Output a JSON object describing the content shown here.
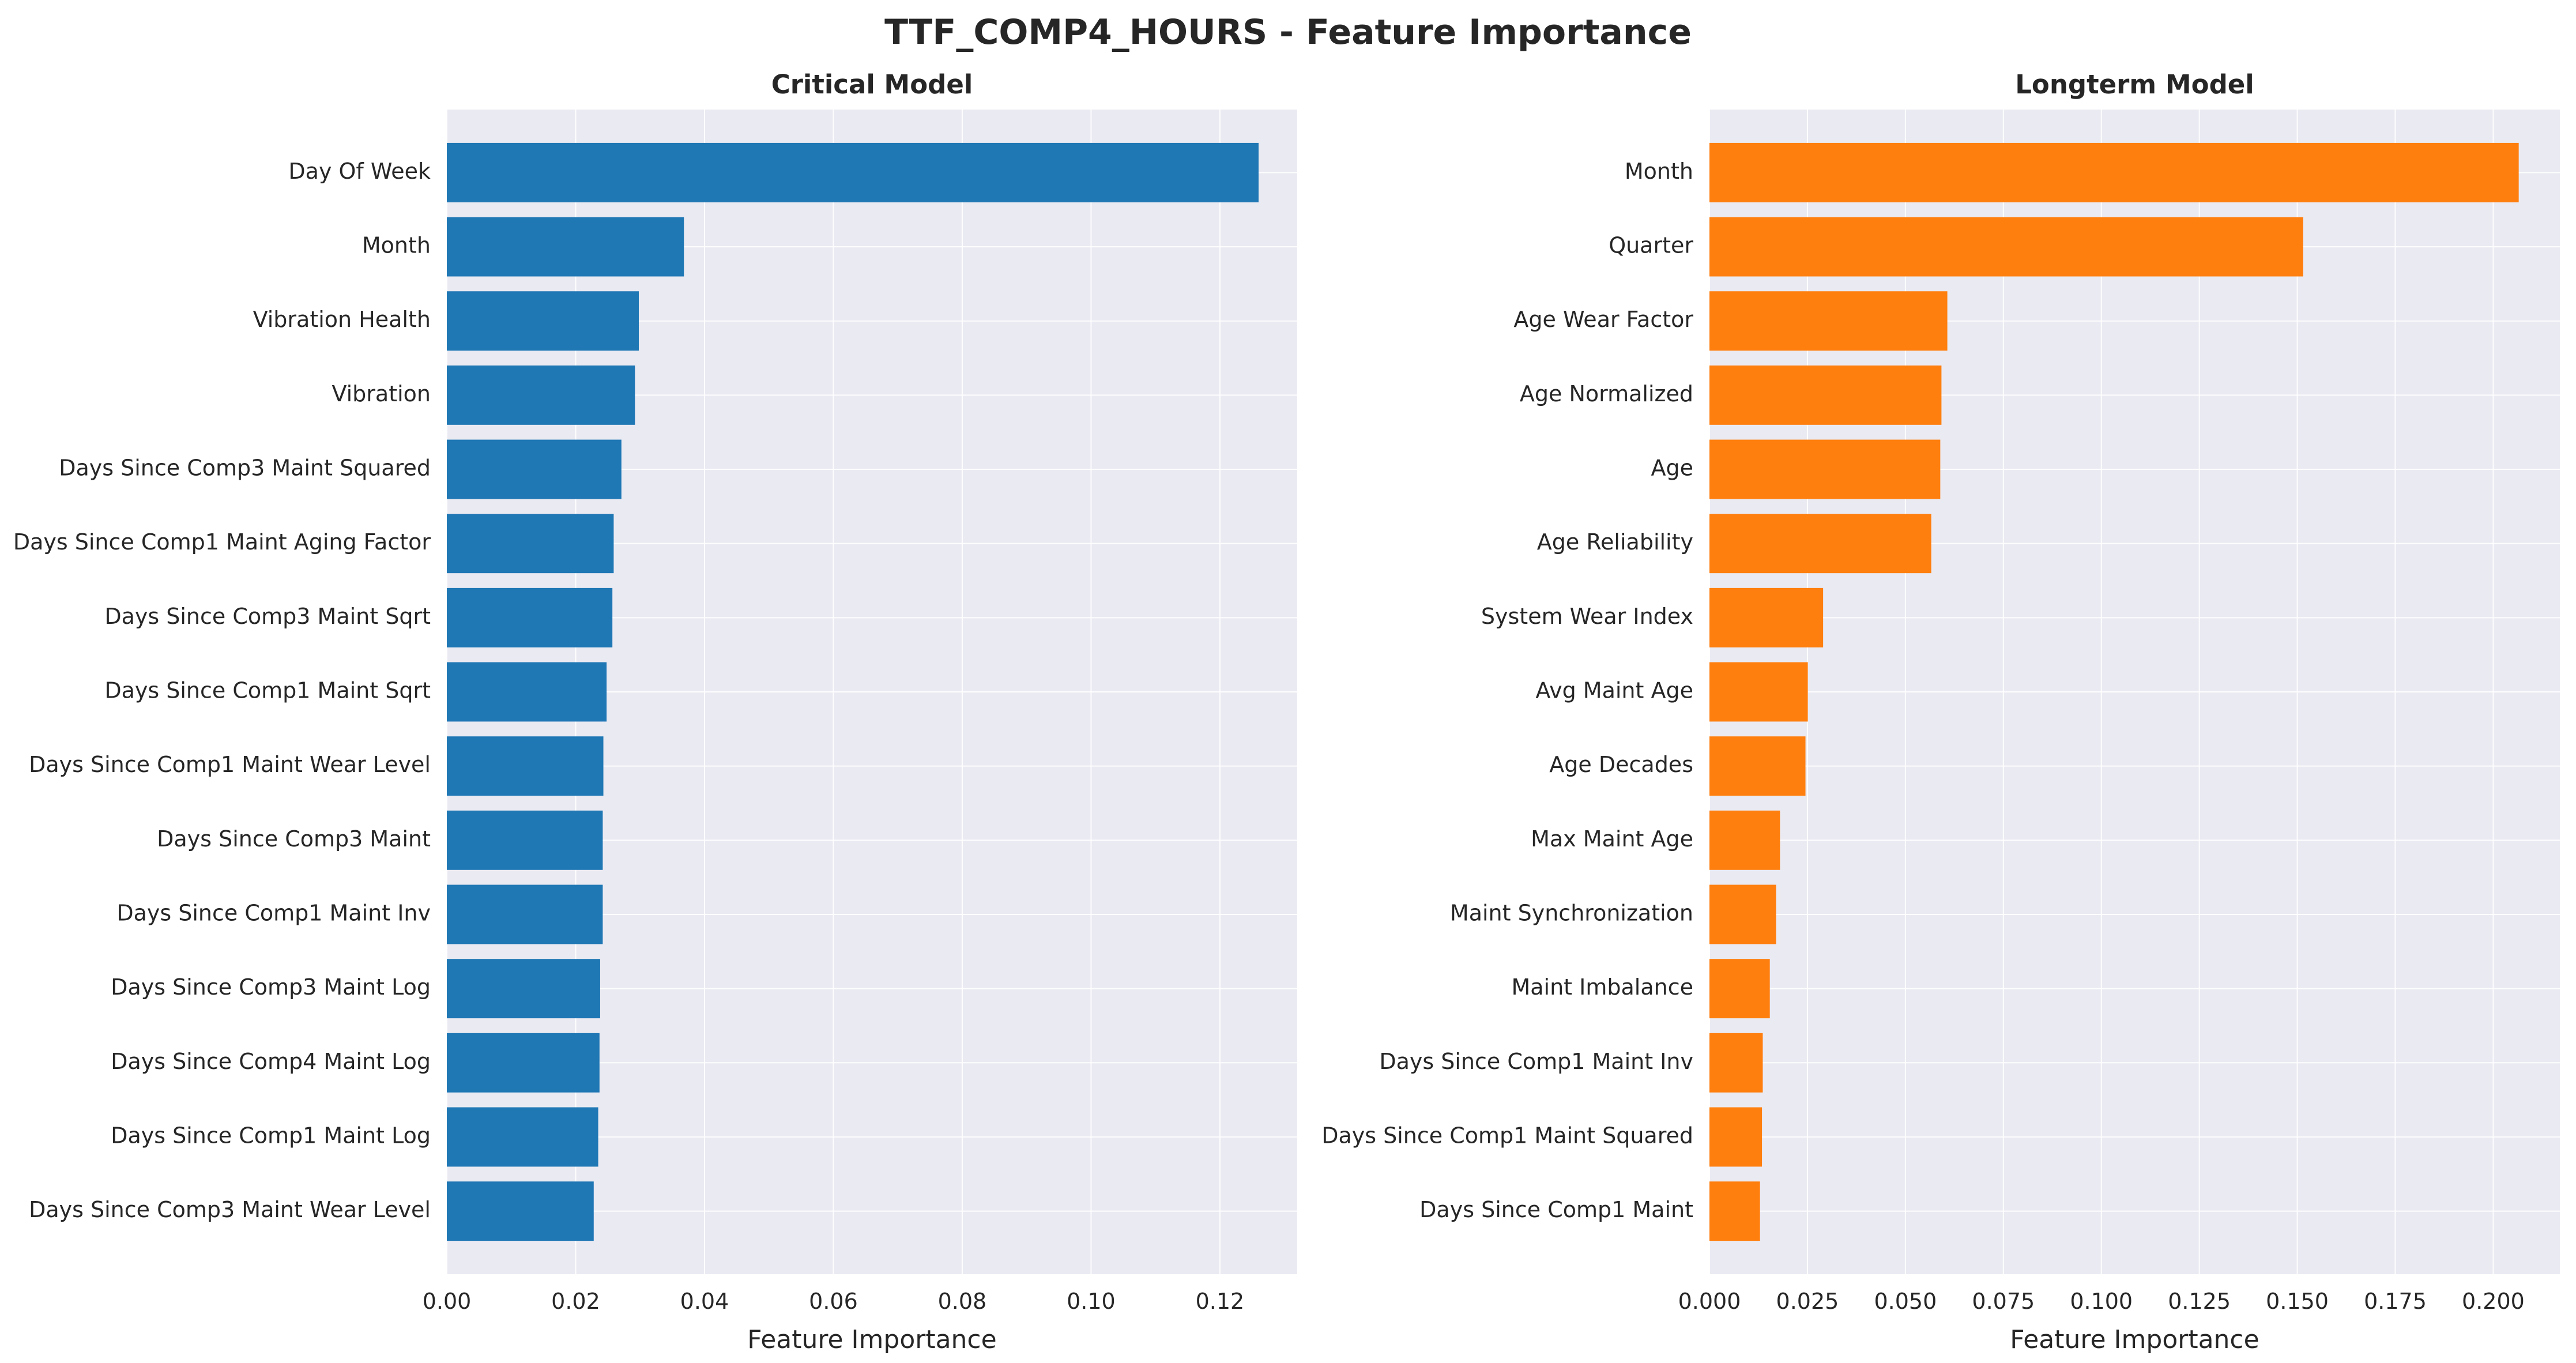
{
  "figure": {
    "suptitle": "TTF_COMP4_HOURS - Feature Importance"
  },
  "colors": {
    "plot_bg": "#eaeaf2",
    "grid": "#ffffff",
    "critical": "#1f77b4",
    "longterm": "#ff7f0e",
    "text": "#262626"
  },
  "chart_data": [
    {
      "type": "bar",
      "orientation": "horizontal",
      "title": "Critical Model",
      "xlabel": "Feature Importance",
      "ylabel": "",
      "xlim": [
        0,
        0.132
      ],
      "xticks": [
        0.0,
        0.02,
        0.04,
        0.06,
        0.08,
        0.1,
        0.12
      ],
      "xtick_labels": [
        "0.00",
        "0.02",
        "0.04",
        "0.06",
        "0.08",
        "0.10",
        "0.12"
      ],
      "grid": true,
      "color": "#1f77b4",
      "categories": [
        "Day Of Week",
        "Month",
        "Vibration Health",
        "Vibration",
        "Days Since Comp3 Maint Squared",
        "Days Since Comp1 Maint Aging Factor",
        "Days Since Comp3 Maint Sqrt",
        "Days Since Comp1 Maint Sqrt",
        "Days Since Comp1 Maint Wear Level",
        "Days Since Comp3 Maint",
        "Days Since Comp1 Maint Inv",
        "Days Since Comp3 Maint Log",
        "Days Since Comp4 Maint Log",
        "Days Since Comp1 Maint Log",
        "Days Since Comp3 Maint Wear Level"
      ],
      "values": [
        0.126,
        0.0368,
        0.0298,
        0.0292,
        0.0271,
        0.0259,
        0.0257,
        0.0248,
        0.0243,
        0.0242,
        0.0242,
        0.0238,
        0.0237,
        0.0235,
        0.0228
      ]
    },
    {
      "type": "bar",
      "orientation": "horizontal",
      "title": "Longterm Model",
      "xlabel": "Feature Importance",
      "ylabel": "",
      "xlim": [
        0,
        0.217
      ],
      "xticks": [
        0.0,
        0.025,
        0.05,
        0.075,
        0.1,
        0.125,
        0.15,
        0.175,
        0.2
      ],
      "xtick_labels": [
        "0.000",
        "0.025",
        "0.050",
        "0.075",
        "0.100",
        "0.125",
        "0.150",
        "0.175",
        "0.200"
      ],
      "grid": true,
      "color": "#ff7f0e",
      "categories": [
        "Month",
        "Quarter",
        "Age Wear Factor",
        "Age Normalized",
        "Age",
        "Age Reliability",
        "System Wear Index",
        "Avg Maint Age",
        "Age Decades",
        "Max Maint Age",
        "Maint Synchronization",
        "Maint Imbalance",
        "Days Since Comp1 Maint Inv",
        "Days Since Comp1 Maint Squared",
        "Days Since Comp1 Maint"
      ],
      "values": [
        0.2065,
        0.1515,
        0.0607,
        0.0592,
        0.0589,
        0.0566,
        0.029,
        0.0251,
        0.0245,
        0.018,
        0.017,
        0.0154,
        0.0136,
        0.0134,
        0.0129
      ]
    }
  ]
}
